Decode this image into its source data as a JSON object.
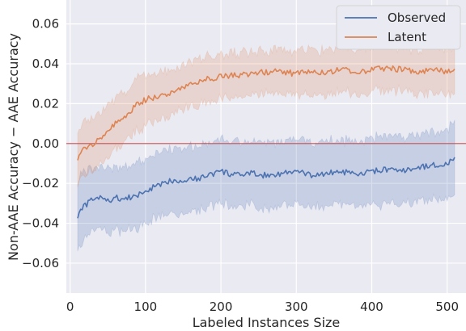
{
  "chart_data": {
    "type": "line",
    "xlabel": "Labeled Instances Size",
    "ylabel": "Non-AAE Accuracy − AAE Accuracy",
    "xlim": [
      -5,
      525
    ],
    "ylim": [
      -0.075,
      0.072
    ],
    "xticks": [
      0,
      100,
      200,
      300,
      400,
      500
    ],
    "yticks": [
      -0.06,
      -0.04,
      -0.02,
      0.0,
      0.02,
      0.04,
      0.06
    ],
    "ytick_labels": [
      "−0.06",
      "−0.04",
      "−0.02",
      "0.00",
      "0.02",
      "0.04",
      "0.06"
    ],
    "grid": true,
    "legend_position": "top-right",
    "reference_line": {
      "y": 0.0,
      "color": "#c44e52"
    },
    "colors": {
      "background": "#eaeaf2",
      "grid": "#ffffff",
      "observed": "#4c72b0",
      "latent": "#dd8452"
    },
    "series": [
      {
        "name": "Observed",
        "color": "#4c72b0",
        "x": [
          10,
          20,
          30,
          40,
          50,
          60,
          70,
          80,
          90,
          100,
          110,
          120,
          130,
          140,
          150,
          160,
          170,
          180,
          190,
          200,
          220,
          240,
          260,
          280,
          300,
          320,
          340,
          360,
          380,
          400,
          420,
          440,
          460,
          480,
          500,
          510
        ],
        "y": [
          -0.036,
          -0.031,
          -0.028,
          -0.027,
          -0.029,
          -0.027,
          -0.028,
          -0.027,
          -0.026,
          -0.024,
          -0.022,
          -0.021,
          -0.019,
          -0.018,
          -0.019,
          -0.017,
          -0.018,
          -0.016,
          -0.015,
          -0.014,
          -0.016,
          -0.015,
          -0.016,
          -0.015,
          -0.014,
          -0.016,
          -0.015,
          -0.014,
          -0.016,
          -0.014,
          -0.013,
          -0.014,
          -0.012,
          -0.011,
          -0.01,
          -0.008
        ],
        "band": [
          0.018,
          0.017,
          0.016,
          0.016,
          0.016,
          0.016,
          0.016,
          0.016,
          0.016,
          0.016,
          0.016,
          0.016,
          0.016,
          0.016,
          0.016,
          0.016,
          0.016,
          0.016,
          0.016,
          0.016,
          0.016,
          0.016,
          0.016,
          0.016,
          0.016,
          0.016,
          0.016,
          0.016,
          0.016,
          0.017,
          0.017,
          0.017,
          0.017,
          0.017,
          0.017,
          0.018
        ]
      },
      {
        "name": "Latent",
        "color": "#dd8452",
        "x": [
          10,
          20,
          30,
          40,
          50,
          60,
          70,
          80,
          90,
          100,
          110,
          120,
          130,
          140,
          150,
          160,
          170,
          180,
          190,
          200,
          220,
          240,
          260,
          280,
          300,
          320,
          340,
          360,
          380,
          400,
          420,
          440,
          460,
          480,
          500,
          510
        ],
        "y": [
          -0.008,
          -0.002,
          0.0,
          0.003,
          0.006,
          0.01,
          0.012,
          0.016,
          0.02,
          0.022,
          0.023,
          0.024,
          0.025,
          0.027,
          0.028,
          0.03,
          0.031,
          0.032,
          0.033,
          0.034,
          0.034,
          0.035,
          0.036,
          0.036,
          0.035,
          0.036,
          0.036,
          0.037,
          0.036,
          0.037,
          0.038,
          0.037,
          0.036,
          0.037,
          0.036,
          0.036
        ],
        "band": [
          0.013,
          0.013,
          0.013,
          0.013,
          0.013,
          0.013,
          0.013,
          0.013,
          0.013,
          0.013,
          0.012,
          0.012,
          0.012,
          0.011,
          0.011,
          0.011,
          0.011,
          0.011,
          0.011,
          0.011,
          0.011,
          0.011,
          0.011,
          0.011,
          0.011,
          0.011,
          0.011,
          0.011,
          0.011,
          0.011,
          0.011,
          0.011,
          0.011,
          0.012,
          0.012,
          0.012
        ]
      }
    ]
  }
}
